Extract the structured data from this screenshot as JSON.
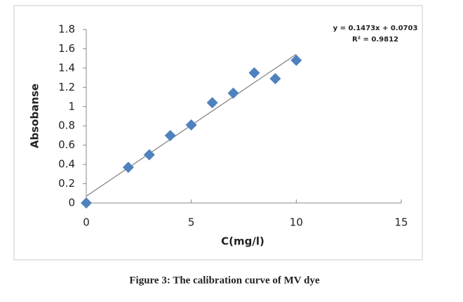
{
  "chart_data": {
    "type": "scatter",
    "x": [
      0,
      2,
      3,
      4,
      5,
      6,
      7,
      8,
      9,
      10
    ],
    "values": [
      0,
      0.37,
      0.5,
      0.7,
      0.81,
      1.04,
      1.14,
      1.35,
      1.29,
      1.48
    ],
    "color": "#4f81bd",
    "xlabel": "C(mg/l)",
    "ylabel": "Absobanse",
    "xlim": [
      0,
      15
    ],
    "xticks": [
      0,
      5,
      10,
      15
    ],
    "ylim": [
      0,
      1.8
    ],
    "yticks": [
      0,
      0.2,
      0.4,
      0.6,
      0.8,
      1,
      1.2,
      1.4,
      1.6,
      1.8
    ],
    "grid": false,
    "trendline": {
      "slope": 0.1473,
      "intercept": 0.0703,
      "label": "y = 0.1473x + 0.0703",
      "r2_label": "R² = 0.9812"
    },
    "caption": "Figure 3: The calibration curve of MV dye"
  }
}
